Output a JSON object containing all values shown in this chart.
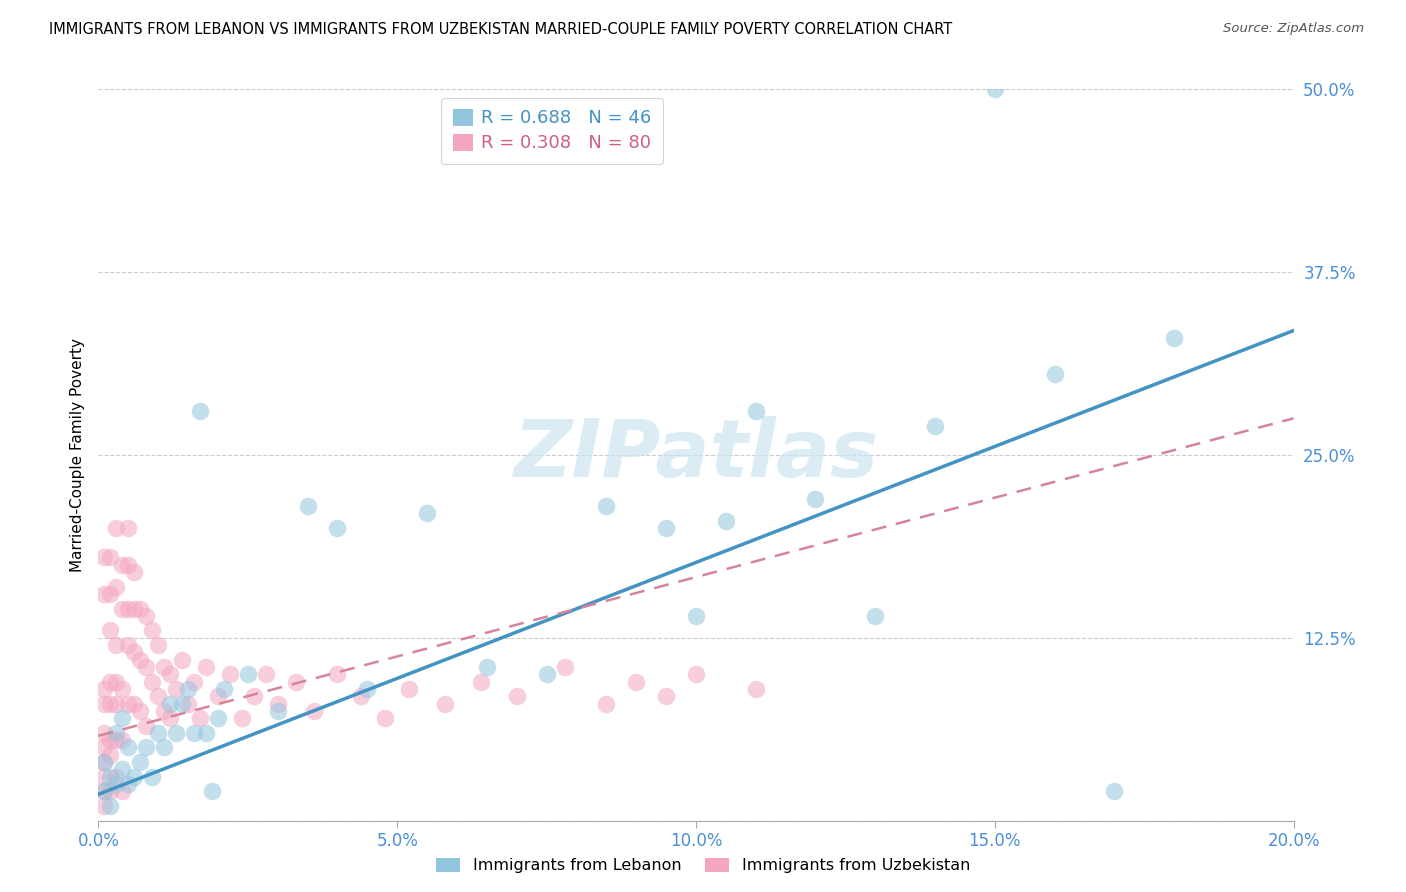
{
  "title": "IMMIGRANTS FROM LEBANON VS IMMIGRANTS FROM UZBEKISTAN MARRIED-COUPLE FAMILY POVERTY CORRELATION CHART",
  "source": "Source: ZipAtlas.com",
  "ylabel": "Married-Couple Family Poverty",
  "xlim": [
    0.0,
    0.2
  ],
  "ylim": [
    0.0,
    0.5
  ],
  "xticks": [
    0.0,
    0.05,
    0.1,
    0.15,
    0.2
  ],
  "xticklabels": [
    "0.0%",
    "5.0%",
    "10.0%",
    "15.0%",
    "20.0%"
  ],
  "yticks": [
    0.0,
    0.125,
    0.25,
    0.375,
    0.5
  ],
  "yticklabels": [
    "",
    "12.5%",
    "25.0%",
    "37.5%",
    "50.0%"
  ],
  "lebanon_color": "#92c5de",
  "uzbekistan_color": "#f4a6c0",
  "lebanon_line_color": "#4393c3",
  "uzbekistan_line_color": "#d6849a",
  "lebanon_R": 0.688,
  "lebanon_N": 46,
  "uzbekistan_R": 0.308,
  "uzbekistan_N": 80,
  "watermark": "ZIPatlas",
  "legend_label_lebanon": "Immigrants from Lebanon",
  "legend_label_uzbekistan": "Immigrants from Uzbekistan",
  "lebanon_x": [
    0.001,
    0.001,
    0.002,
    0.002,
    0.003,
    0.003,
    0.004,
    0.004,
    0.005,
    0.005,
    0.006,
    0.007,
    0.008,
    0.009,
    0.01,
    0.011,
    0.012,
    0.013,
    0.014,
    0.015,
    0.016,
    0.017,
    0.018,
    0.019,
    0.02,
    0.021,
    0.025,
    0.03,
    0.035,
    0.04,
    0.045,
    0.055,
    0.065,
    0.075,
    0.085,
    0.095,
    0.1,
    0.105,
    0.11,
    0.12,
    0.13,
    0.14,
    0.15,
    0.16,
    0.17,
    0.18
  ],
  "lebanon_y": [
    0.02,
    0.04,
    0.03,
    0.01,
    0.025,
    0.06,
    0.035,
    0.07,
    0.025,
    0.05,
    0.03,
    0.04,
    0.05,
    0.03,
    0.06,
    0.05,
    0.08,
    0.06,
    0.08,
    0.09,
    0.06,
    0.28,
    0.06,
    0.02,
    0.07,
    0.09,
    0.1,
    0.075,
    0.215,
    0.2,
    0.09,
    0.21,
    0.105,
    0.1,
    0.215,
    0.2,
    0.14,
    0.205,
    0.28,
    0.22,
    0.14,
    0.27,
    0.5,
    0.305,
    0.02,
    0.33
  ],
  "uzbekistan_x": [
    0.001,
    0.001,
    0.001,
    0.001,
    0.001,
    0.001,
    0.001,
    0.001,
    0.001,
    0.001,
    0.002,
    0.002,
    0.002,
    0.002,
    0.002,
    0.002,
    0.002,
    0.002,
    0.003,
    0.003,
    0.003,
    0.003,
    0.003,
    0.003,
    0.003,
    0.004,
    0.004,
    0.004,
    0.004,
    0.004,
    0.005,
    0.005,
    0.005,
    0.005,
    0.005,
    0.006,
    0.006,
    0.006,
    0.006,
    0.007,
    0.007,
    0.007,
    0.008,
    0.008,
    0.008,
    0.009,
    0.009,
    0.01,
    0.01,
    0.011,
    0.011,
    0.012,
    0.012,
    0.013,
    0.014,
    0.015,
    0.016,
    0.017,
    0.018,
    0.02,
    0.022,
    0.024,
    0.026,
    0.028,
    0.03,
    0.033,
    0.036,
    0.04,
    0.044,
    0.048,
    0.052,
    0.058,
    0.064,
    0.07,
    0.078,
    0.085,
    0.09,
    0.095,
    0.1,
    0.11
  ],
  "uzbekistan_y": [
    0.155,
    0.18,
    0.06,
    0.04,
    0.09,
    0.02,
    0.05,
    0.03,
    0.01,
    0.08,
    0.155,
    0.18,
    0.095,
    0.055,
    0.02,
    0.08,
    0.13,
    0.045,
    0.16,
    0.2,
    0.08,
    0.12,
    0.055,
    0.095,
    0.03,
    0.175,
    0.145,
    0.09,
    0.055,
    0.02,
    0.2,
    0.175,
    0.145,
    0.12,
    0.08,
    0.17,
    0.145,
    0.115,
    0.08,
    0.145,
    0.11,
    0.075,
    0.14,
    0.105,
    0.065,
    0.13,
    0.095,
    0.12,
    0.085,
    0.105,
    0.075,
    0.1,
    0.07,
    0.09,
    0.11,
    0.08,
    0.095,
    0.07,
    0.105,
    0.085,
    0.1,
    0.07,
    0.085,
    0.1,
    0.08,
    0.095,
    0.075,
    0.1,
    0.085,
    0.07,
    0.09,
    0.08,
    0.095,
    0.085,
    0.105,
    0.08,
    0.095,
    0.085,
    0.1,
    0.09
  ],
  "lebanon_trend_x": [
    0.0,
    0.2
  ],
  "lebanon_trend_y": [
    0.018,
    0.335
  ],
  "uzbekistan_trend_x": [
    0.0,
    0.2
  ],
  "uzbekistan_trend_y": [
    0.058,
    0.275
  ]
}
